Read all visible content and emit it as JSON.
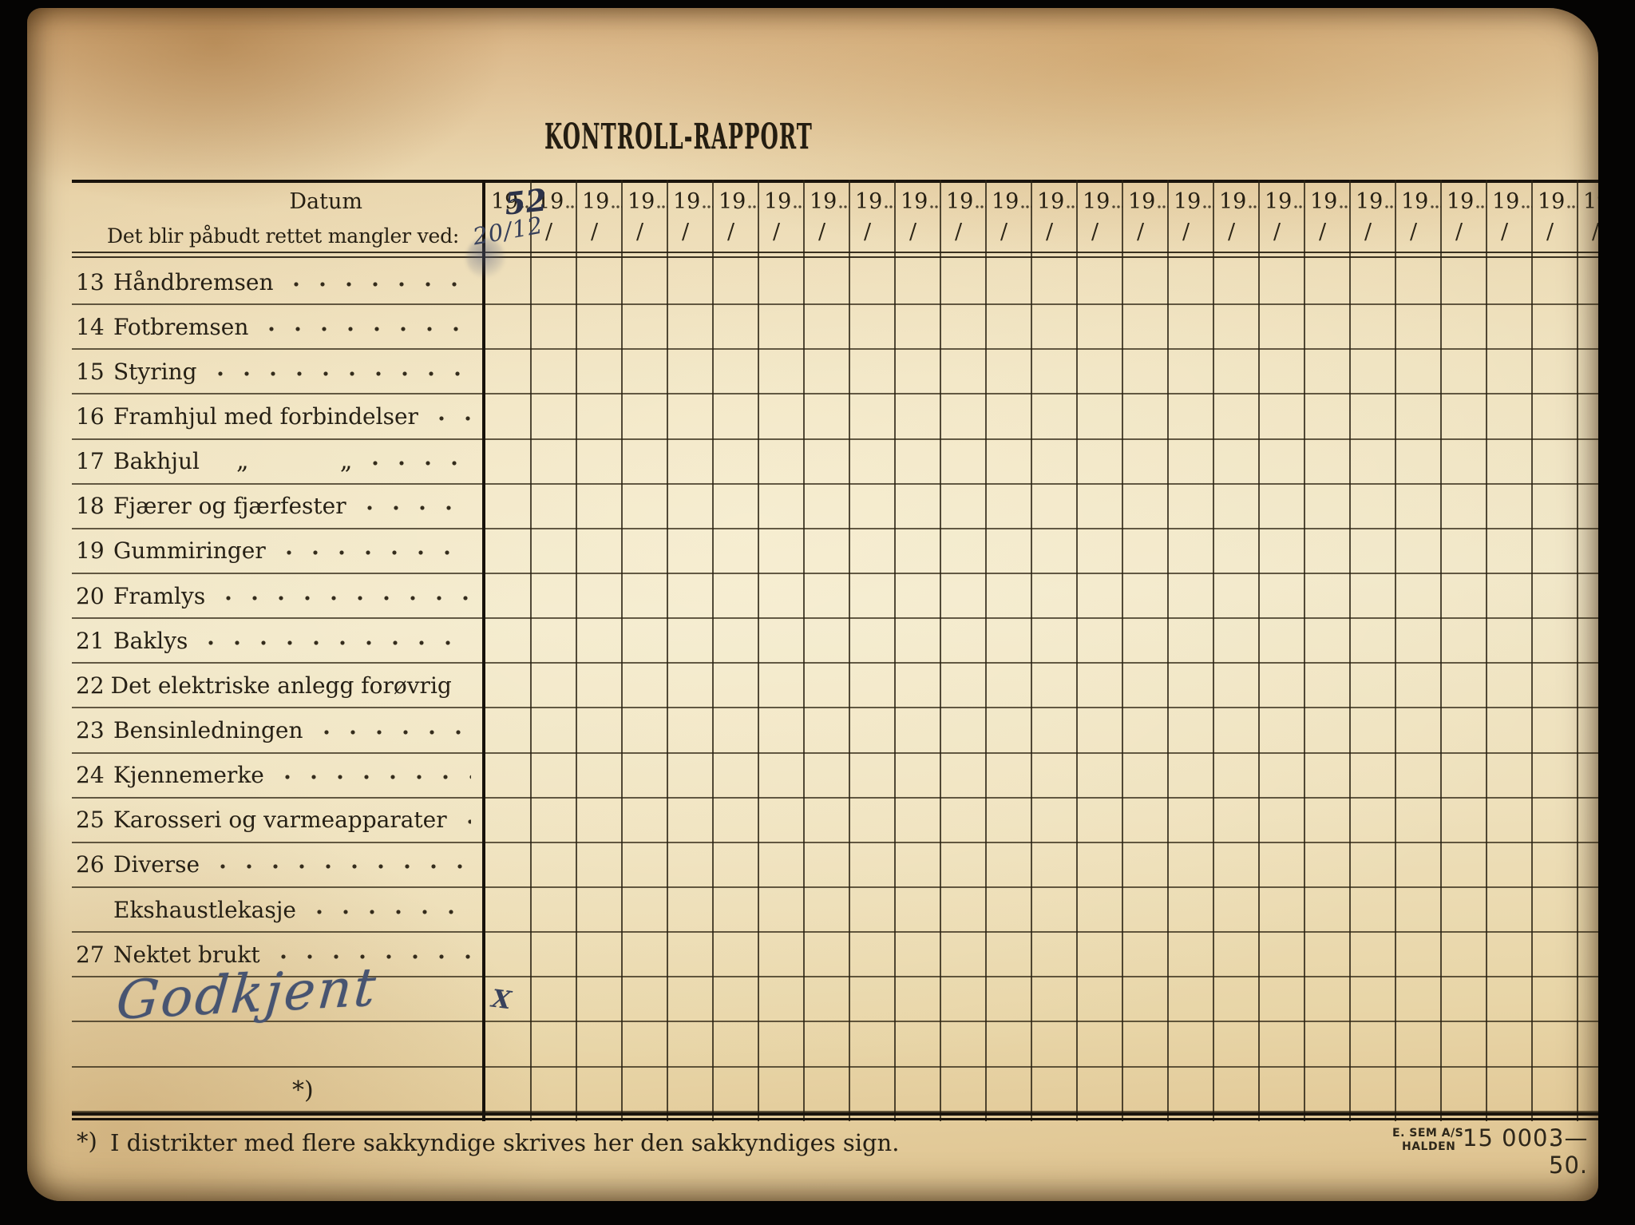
{
  "title": "KONTROLL-RAPPORT",
  "table": {
    "datum_label": "Datum",
    "instruction": "Det blir påbudt rettet mangler ved:",
    "year_prefix": "19",
    "column_count": 25,
    "date_slash": "/",
    "handwritten": {
      "first_year_suffix": "52",
      "first_date": "20/12",
      "approval_mark": "X",
      "signature": "Godkjent"
    },
    "rows": [
      {
        "num": "13",
        "label": "Håndbremsen"
      },
      {
        "num": "14",
        "label": "Fotbremsen"
      },
      {
        "num": "15",
        "label": "Styring"
      },
      {
        "num": "16",
        "label": "Framhjul med forbindelser"
      },
      {
        "num": "17",
        "label": "Bakhjul",
        "suffix": "„            „"
      },
      {
        "num": "18",
        "label": "Fjærer og fjærfester"
      },
      {
        "num": "19",
        "label": "Gummiringer"
      },
      {
        "num": "20",
        "label": "Framlys"
      },
      {
        "num": "21",
        "label": "Baklys"
      },
      {
        "num": "22",
        "label": "Det elektriske anlegg forøvrig"
      },
      {
        "num": "23",
        "label": "Bensinledningen"
      },
      {
        "num": "24",
        "label": "Kjennemerke"
      },
      {
        "num": "25",
        "label": "Karosseri og varmeapparater"
      },
      {
        "num": "26",
        "label": "Diverse"
      },
      {
        "num": "",
        "label": "Ekshaustlekasje"
      },
      {
        "num": "27",
        "label": "Nektet brukt"
      }
    ],
    "star_marker": "*)"
  },
  "footnote": {
    "marker": "*)",
    "text": "I distrikter med flere sakkyndige skrives her den sakkyndiges sign."
  },
  "printer": {
    "name": "E. SEM A/S",
    "city": "HALDEN",
    "edition": "15 000.",
    "date_code": "3—50."
  },
  "colors": {
    "paper": "#efe2bf",
    "print_ink": "#262015",
    "hand_ink": "#3a4560",
    "background": "#050403"
  }
}
